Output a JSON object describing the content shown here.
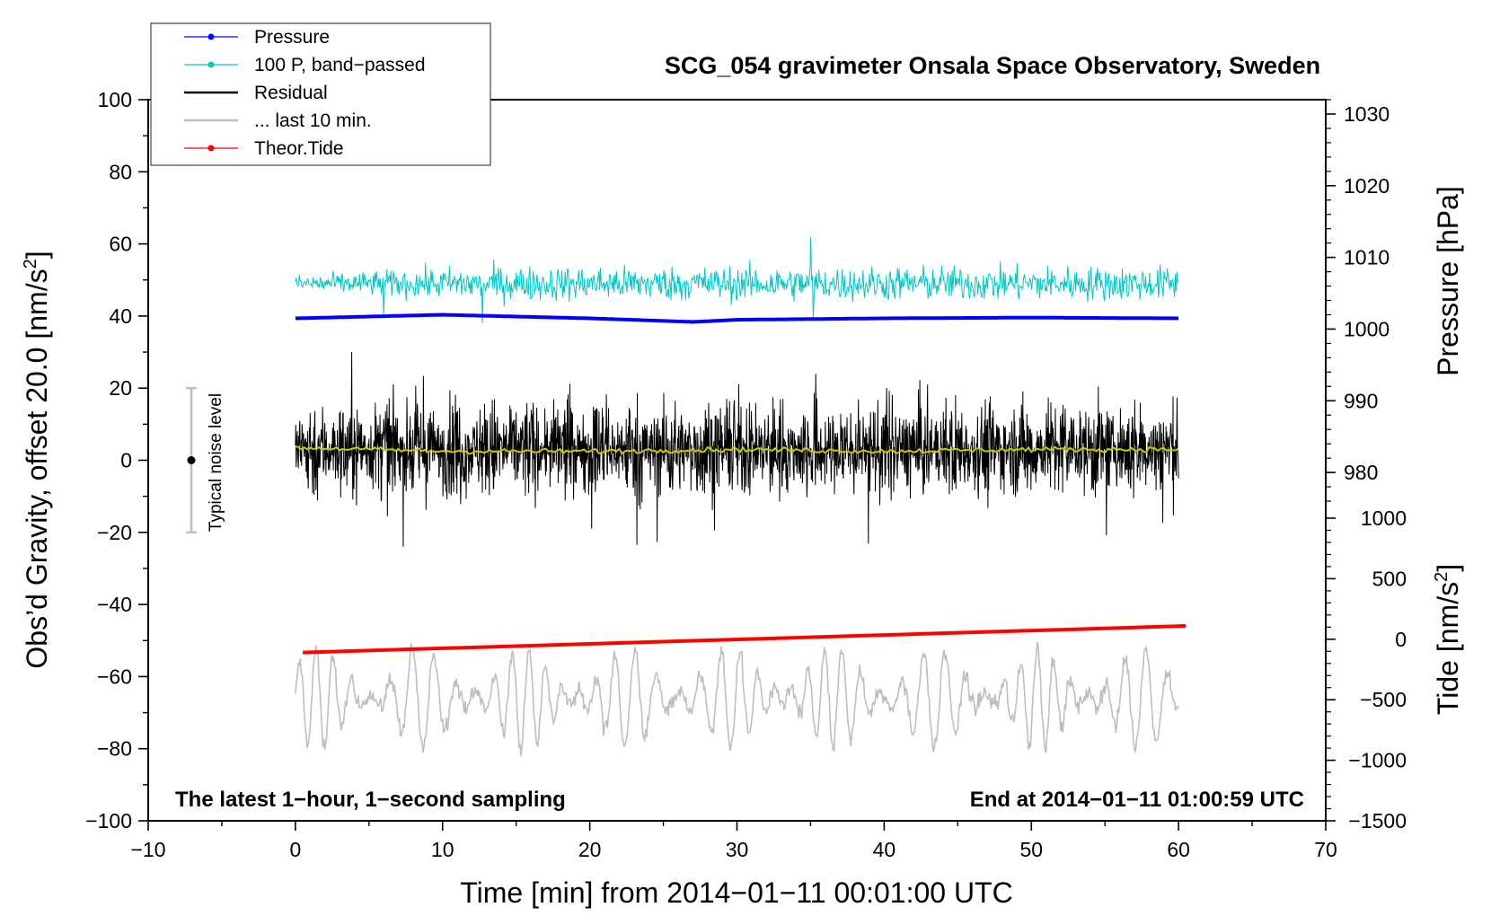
{
  "chart_data": {
    "type": "line",
    "title": "SCG_054 gravimeter Onsala Space Observatory, Sweden",
    "xlabel": "Time [min] from 2014−01−11 00:01:00 UTC",
    "ylabel_left_main": "Obs’d Gravity, offset 20.0 [nm/s",
    "ylabel_left_sup": "2",
    "ylabel_left_end": "]",
    "ylabel_right_pressure": "Pressure [hPa]",
    "ylabel_right_tide_main": "Tide [nm/s",
    "ylabel_right_tide_sup": "2",
    "ylabel_right_tide_end": "]",
    "xlim": [
      -10,
      70
    ],
    "ylim": [
      -100,
      100
    ],
    "pressure_axis_range": [
      974,
      1032
    ],
    "tide_axis_range": [
      -1500,
      1000
    ],
    "x_ticks": [
      "−10",
      "0",
      "10",
      "20",
      "30",
      "40",
      "50",
      "60",
      "70"
    ],
    "y_ticks": [
      "−100",
      "−80",
      "−60",
      "−40",
      "−20",
      "0",
      "20",
      "40",
      "60",
      "80",
      "100"
    ],
    "pressure_ticks": [
      "980",
      "990",
      "1000",
      "1010",
      "1020",
      "1030"
    ],
    "tide_ticks": [
      "−1500",
      "−1000",
      "−500",
      "0",
      "500",
      "1000"
    ],
    "note_left": "The latest 1−hour, 1−second sampling",
    "note_right": "End at 2014−01−11 01:00:59 UTC",
    "noise_label": "Typical noise level",
    "noise_bar": [
      -20,
      20
    ],
    "legend": [
      {
        "label": "Pressure",
        "color": "#0000ff",
        "marker": true
      },
      {
        "label": "100 P, band−passed",
        "color": "#00c8c8",
        "marker": true
      },
      {
        "label": "Residual",
        "color": "#000000",
        "marker": false
      },
      {
        "label": "... last 10 min.",
        "color": "#bebebe",
        "marker": false
      },
      {
        "label": "Theor.Tide",
        "color": "#ff0000",
        "marker": true
      }
    ],
    "series": [
      {
        "name": "Pressure",
        "axis": "pressure",
        "color": "#0000ff",
        "x": [
          0,
          10,
          20,
          27,
          30,
          40,
          50,
          60
        ],
        "values": [
          1001.5,
          1002.0,
          1001.5,
          1001.0,
          1001.3,
          1001.5,
          1001.6,
          1001.5
        ]
      },
      {
        "name": "100 P, band−passed",
        "axis": "left",
        "color": "#00c8c8",
        "x_range": [
          0,
          60
        ],
        "center": 50,
        "amplitude": 4,
        "spikes": [
          {
            "x": 12.7,
            "value": 38
          },
          {
            "x": 35,
            "value": 62
          },
          {
            "x": 35.2,
            "value": 39
          },
          {
            "x": 6,
            "value": 40
          }
        ]
      },
      {
        "name": "Residual",
        "axis": "left",
        "color": "#000000",
        "x_range": [
          0,
          60
        ],
        "center": 3,
        "amplitude": 12,
        "extremes": [
          -24,
          30
        ]
      },
      {
        "name": "Residual smoothed",
        "axis": "left",
        "color": "#c8c800",
        "x": [
          0,
          10,
          20,
          30,
          40,
          50,
          60
        ],
        "values": [
          3.5,
          2.5,
          2.5,
          3,
          2.5,
          3,
          3
        ]
      },
      {
        "name": "... last 10 min.",
        "axis": "left",
        "color": "#bebebe",
        "x_range": [
          0,
          60
        ],
        "center": -66,
        "amplitude": 14,
        "extremes": [
          -84,
          -39
        ]
      },
      {
        "name": "Theor.Tide",
        "axis": "tide",
        "color": "#ff0000",
        "x": [
          0.5,
          60.5
        ],
        "values": [
          -110,
          110
        ]
      }
    ]
  }
}
